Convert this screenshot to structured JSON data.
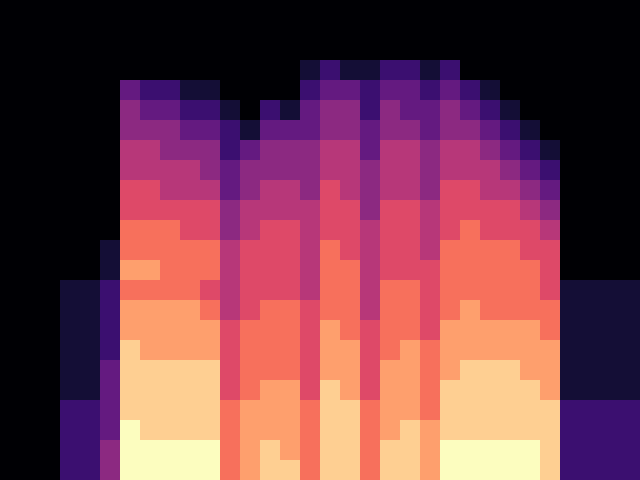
{
  "chart_data": {
    "type": "heatmap",
    "xlim": [
      0,
      32
    ],
    "ylim": [
      0,
      24
    ],
    "clim": [
      0,
      10
    ],
    "grid": false,
    "tick_labels": false,
    "cells": [
      [
        0,
        0,
        0,
        0,
        0,
        0,
        0,
        0,
        0,
        0,
        0,
        0,
        0,
        0,
        0,
        0,
        0,
        0,
        0,
        0,
        0,
        0,
        0,
        0
      ],
      [
        0,
        0,
        0,
        0,
        0,
        0,
        0,
        0,
        0,
        0,
        0,
        0,
        0,
        0,
        0,
        0,
        0,
        0,
        0,
        0,
        0,
        0,
        0,
        0
      ],
      [
        0,
        0,
        0,
        0,
        0,
        0,
        0,
        0,
        0,
        0,
        0,
        0,
        0,
        0,
        0,
        0,
        0,
        0,
        0,
        0,
        0,
        0,
        0,
        0
      ],
      [
        0,
        0,
        0,
        0,
        0,
        0,
        0,
        0,
        0,
        0,
        0,
        0,
        0,
        0,
        1,
        1,
        1,
        1,
        1,
        1,
        2,
        2,
        2,
        2
      ],
      [
        0,
        0,
        0,
        0,
        0,
        0,
        0,
        0,
        0,
        0,
        0,
        0,
        0,
        0,
        1,
        1,
        1,
        1,
        1,
        1,
        2,
        2,
        2,
        2
      ],
      [
        0,
        0,
        0,
        0,
        0,
        0,
        0,
        0,
        0,
        0,
        0,
        0,
        1,
        1,
        2,
        2,
        2,
        2,
        3,
        3,
        3,
        3,
        4,
        4
      ],
      [
        0,
        0,
        0,
        0,
        3,
        4,
        4,
        5,
        5,
        6,
        6,
        7,
        7,
        8,
        7,
        8,
        8,
        9,
        9,
        9,
        9,
        10,
        10,
        10
      ],
      [
        0,
        0,
        0,
        0,
        2,
        3,
        4,
        5,
        5,
        6,
        6,
        7,
        7,
        8,
        7,
        8,
        8,
        8,
        9,
        9,
        9,
        9,
        10,
        10
      ],
      [
        0,
        0,
        0,
        0,
        2,
        3,
        4,
        4,
        5,
        5,
        6,
        7,
        7,
        7,
        7,
        8,
        8,
        8,
        9,
        9,
        9,
        9,
        10,
        10
      ],
      [
        0,
        0,
        0,
        0,
        1,
        2,
        3,
        4,
        5,
        5,
        6,
        6,
        7,
        7,
        7,
        8,
        8,
        8,
        9,
        9,
        9,
        9,
        10,
        10
      ],
      [
        0,
        0,
        0,
        0,
        1,
        2,
        3,
        4,
        4,
        5,
        6,
        6,
        7,
        7,
        6,
        7,
        8,
        8,
        9,
        9,
        9,
        9,
        10,
        10
      ],
      [
        0,
        0,
        0,
        0,
        0,
        1,
        2,
        2,
        3,
        3,
        4,
        4,
        5,
        5,
        5,
        5,
        6,
        6,
        6,
        6,
        7,
        7,
        7,
        7
      ],
      [
        0,
        0,
        0,
        0,
        0,
        0,
        1,
        3,
        4,
        4,
        5,
        5,
        6,
        6,
        6,
        6,
        7,
        7,
        7,
        7,
        8,
        8,
        8,
        8
      ],
      [
        0,
        0,
        0,
        0,
        0,
        2,
        3,
        4,
        4,
        5,
        5,
        6,
        6,
        6,
        6,
        7,
        7,
        7,
        7,
        8,
        8,
        8,
        9,
        9
      ],
      [
        0,
        0,
        0,
        0,
        0,
        1,
        3,
        4,
        4,
        5,
        5,
        6,
        6,
        6,
        6,
        7,
        7,
        7,
        7,
        8,
        8,
        8,
        8,
        9
      ],
      [
        0,
        0,
        0,
        1,
        2,
        3,
        3,
        4,
        4,
        4,
        5,
        5,
        5,
        5,
        5,
        6,
        6,
        6,
        6,
        6,
        7,
        7,
        7,
        7
      ],
      [
        0,
        0,
        0,
        2,
        3,
        4,
        4,
        5,
        5,
        6,
        6,
        6,
        7,
        7,
        7,
        7,
        8,
        8,
        8,
        9,
        9,
        9,
        9,
        9
      ],
      [
        0,
        0,
        0,
        1,
        3,
        4,
        4,
        5,
        5,
        5,
        6,
        6,
        6,
        7,
        7,
        7,
        7,
        8,
        8,
        8,
        9,
        9,
        9,
        9
      ],
      [
        0,
        0,
        0,
        1,
        2,
        2,
        3,
        3,
        4,
        4,
        4,
        5,
        5,
        5,
        5,
        5,
        6,
        6,
        6,
        6,
        7,
        7,
        7,
        7
      ],
      [
        0,
        0,
        0,
        2,
        3,
        4,
        4,
        5,
        5,
        5,
        6,
        6,
        6,
        6,
        7,
        7,
        7,
        7,
        8,
        8,
        8,
        8,
        9,
        9
      ],
      [
        0,
        0,
        0,
        2,
        3,
        3,
        4,
        5,
        5,
        5,
        6,
        6,
        6,
        6,
        7,
        7,
        7,
        8,
        8,
        8,
        8,
        9,
        9,
        9
      ],
      [
        0,
        0,
        0,
        1,
        2,
        3,
        3,
        4,
        4,
        4,
        5,
        5,
        5,
        6,
        6,
        6,
        6,
        7,
        7,
        7,
        7,
        8,
        8,
        8
      ],
      [
        0,
        0,
        0,
        2,
        3,
        4,
        4,
        5,
        5,
        6,
        6,
        6,
        7,
        7,
        7,
        7,
        8,
        8,
        8,
        9,
        9,
        9,
        10,
        10
      ],
      [
        0,
        0,
        0,
        0,
        2,
        3,
        4,
        5,
        5,
        6,
        6,
        7,
        7,
        7,
        7,
        8,
        8,
        8,
        9,
        9,
        9,
        9,
        10,
        10
      ],
      [
        0,
        0,
        0,
        0,
        1,
        2,
        3,
        4,
        5,
        5,
        6,
        6,
        7,
        7,
        7,
        7,
        8,
        8,
        9,
        9,
        9,
        9,
        10,
        10
      ],
      [
        0,
        0,
        0,
        0,
        0,
        1,
        2,
        3,
        4,
        5,
        6,
        6,
        7,
        7,
        7,
        7,
        8,
        8,
        9,
        9,
        9,
        9,
        10,
        10
      ],
      [
        0,
        0,
        0,
        0,
        0,
        0,
        1,
        2,
        3,
        4,
        5,
        6,
        6,
        7,
        7,
        7,
        8,
        8,
        8,
        9,
        9,
        9,
        10,
        10
      ],
      [
        0,
        0,
        0,
        0,
        0,
        0,
        0,
        1,
        2,
        3,
        4,
        5,
        6,
        6,
        6,
        7,
        7,
        8,
        8,
        8,
        9,
        9,
        9,
        9
      ],
      [
        0,
        0,
        0,
        0,
        0,
        0,
        0,
        0,
        0,
        0,
        0,
        0,
        0,
        0,
        1,
        1,
        1,
        1,
        1,
        1,
        2,
        2,
        2,
        2
      ],
      [
        0,
        0,
        0,
        0,
        0,
        0,
        0,
        0,
        0,
        0,
        0,
        0,
        0,
        0,
        1,
        1,
        1,
        1,
        1,
        1,
        2,
        2,
        2,
        2
      ],
      [
        0,
        0,
        0,
        0,
        0,
        0,
        0,
        0,
        0,
        0,
        0,
        0,
        0,
        0,
        1,
        1,
        1,
        1,
        1,
        1,
        2,
        2,
        2,
        2
      ],
      [
        0,
        0,
        0,
        0,
        0,
        0,
        0,
        0,
        0,
        0,
        0,
        0,
        0,
        0,
        1,
        1,
        1,
        1,
        1,
        1,
        2,
        2,
        2,
        2
      ]
    ]
  }
}
